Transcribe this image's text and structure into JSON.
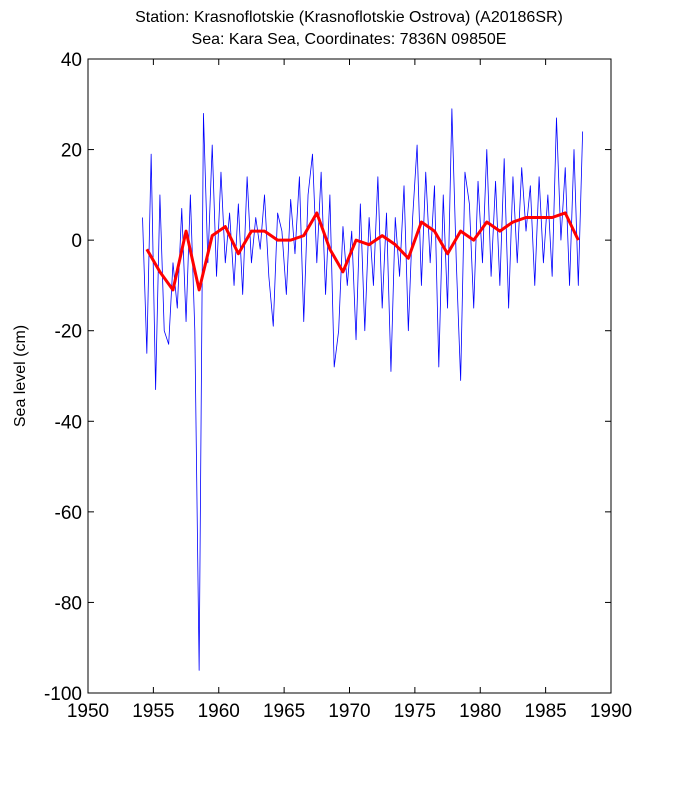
{
  "chart_data": {
    "type": "line",
    "title": "Station: Krasnoflotskie (Krasnoflotskie Ostrova)  (A20186SR)",
    "subtitle": "Sea: Kara Sea, Coordinates: 7836N 09850E",
    "ylabel": "Sea level (cm)",
    "xlim": [
      1950,
      1990
    ],
    "xticks": [
      1950,
      1955,
      1960,
      1965,
      1970,
      1975,
      1980,
      1985,
      1990
    ],
    "ylim": [
      -100,
      40
    ],
    "yticks": [
      40,
      20,
      0,
      -20,
      -40,
      -60,
      -80,
      -100
    ],
    "grid": false,
    "series": [
      {
        "color": "#0000ff",
        "width": 0.8,
        "x": [
          1954.17,
          1954.5,
          1954.83,
          1955.17,
          1955.5,
          1955.83,
          1956.17,
          1956.5,
          1956.83,
          1957.17,
          1957.5,
          1957.83,
          1958.17,
          1958.5,
          1958.83,
          1959.17,
          1959.5,
          1959.83,
          1960.17,
          1960.5,
          1960.83,
          1961.17,
          1961.5,
          1961.83,
          1962.17,
          1962.5,
          1962.83,
          1963.17,
          1963.5,
          1963.83,
          1964.17,
          1964.5,
          1964.83,
          1965.17,
          1965.5,
          1965.83,
          1966.17,
          1966.5,
          1966.83,
          1967.17,
          1967.5,
          1967.83,
          1968.17,
          1968.5,
          1968.83,
          1969.17,
          1969.5,
          1969.83,
          1970.17,
          1970.5,
          1970.83,
          1971.17,
          1971.5,
          1971.83,
          1972.17,
          1972.5,
          1972.83,
          1973.17,
          1973.5,
          1973.83,
          1974.17,
          1974.5,
          1974.83,
          1975.17,
          1975.5,
          1975.83,
          1976.17,
          1976.5,
          1976.83,
          1977.17,
          1977.5,
          1977.83,
          1978.17,
          1978.5,
          1978.83,
          1979.17,
          1979.5,
          1979.83,
          1980.17,
          1980.5,
          1980.83,
          1981.17,
          1981.5,
          1981.83,
          1982.17,
          1982.5,
          1982.83,
          1983.17,
          1983.5,
          1983.83,
          1984.17,
          1984.5,
          1984.83,
          1985.17,
          1985.5,
          1985.83,
          1986.17,
          1986.5,
          1986.83,
          1987.17,
          1987.5,
          1987.83
        ],
        "values": [
          5,
          -25,
          19,
          -33,
          10,
          -20,
          -23,
          -5,
          -15,
          7,
          -18,
          10,
          -20,
          -95,
          28,
          -5,
          21,
          -8,
          15,
          -5,
          6,
          -10,
          8,
          -12,
          14,
          -5,
          5,
          -2,
          10,
          -8,
          -19,
          6,
          2,
          -12,
          9,
          -3,
          14,
          -18,
          10,
          19,
          -5,
          15,
          -12,
          10,
          -28,
          -20,
          3,
          -10,
          2,
          -22,
          8,
          -20,
          5,
          -10,
          14,
          -15,
          6,
          -29,
          5,
          -8,
          12,
          -20,
          5,
          21,
          -10,
          15,
          -5,
          12,
          -28,
          10,
          -15,
          29,
          -5,
          -31,
          15,
          8,
          -15,
          13,
          -5,
          20,
          -8,
          13,
          -10,
          18,
          -15,
          14,
          -5,
          16,
          2,
          12,
          -10,
          14,
          -5,
          10,
          -8,
          27,
          0,
          16,
          -10,
          20,
          -10,
          24
        ]
      },
      {
        "color": "#ff0000",
        "width": 3,
        "x": [
          1954.5,
          1955.5,
          1956.5,
          1957.5,
          1958.5,
          1959.5,
          1960.5,
          1961.5,
          1962.5,
          1963.5,
          1964.5,
          1965.5,
          1966.5,
          1967.5,
          1968.5,
          1969.5,
          1970.5,
          1971.5,
          1972.5,
          1973.5,
          1974.5,
          1975.5,
          1976.5,
          1977.5,
          1978.5,
          1979.5,
          1980.5,
          1981.5,
          1982.5,
          1983.5,
          1984.5,
          1985.5,
          1986.5,
          1987.5
        ],
        "values": [
          -2,
          -7,
          -11,
          2,
          -11,
          1,
          3,
          -3,
          2,
          2,
          0,
          0,
          1,
          6,
          -2,
          -7,
          0,
          -1,
          1,
          -1,
          -4,
          4,
          2,
          -3,
          2,
          0,
          4,
          2,
          4,
          5,
          5,
          5,
          6,
          0
        ]
      }
    ]
  }
}
